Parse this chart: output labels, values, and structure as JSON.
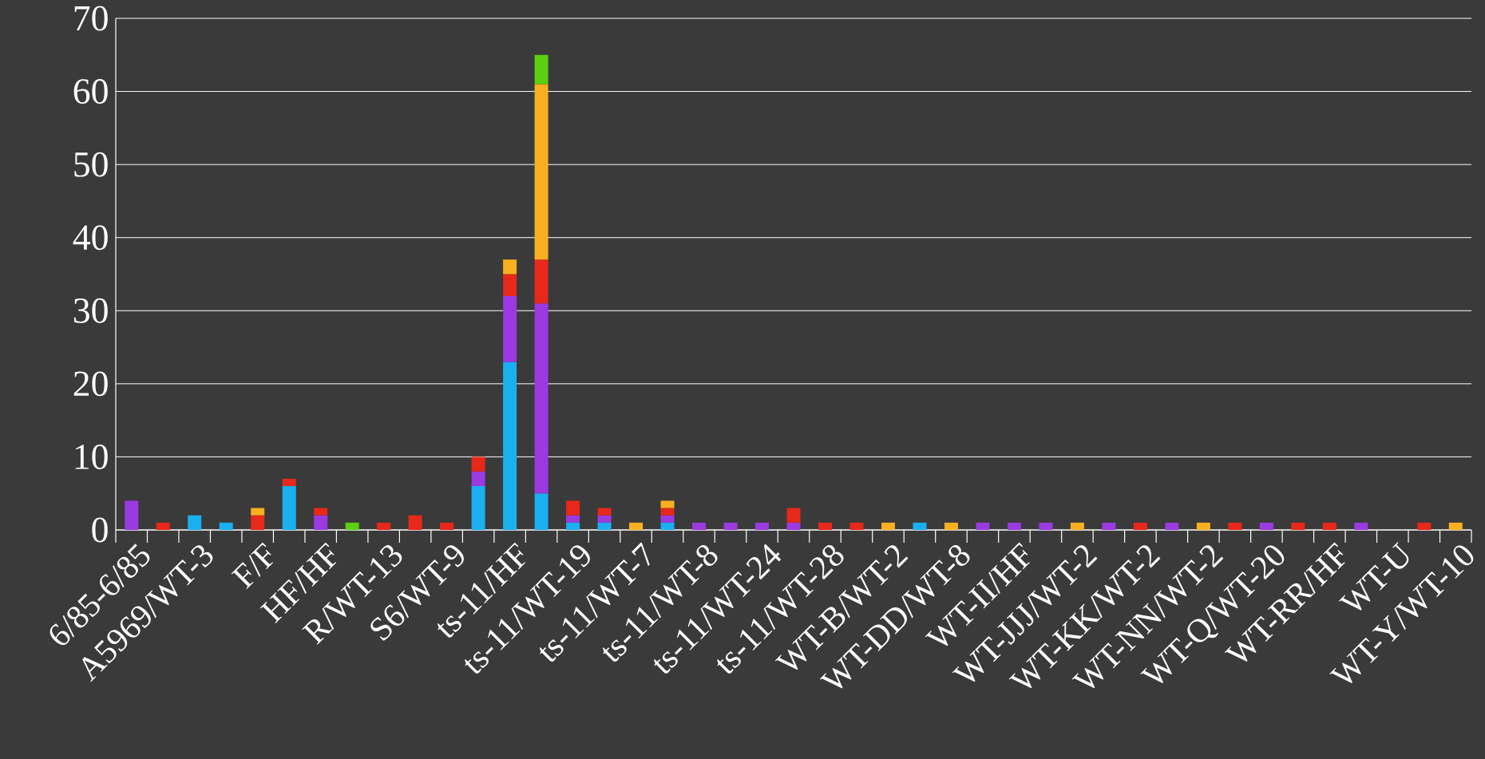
{
  "chart_data": {
    "type": "bar",
    "stacked": true,
    "categories": [
      "6/85-6/85",
      null,
      "A5969/WT-3",
      null,
      "F/F",
      null,
      "HF/HF",
      null,
      "R/WT-13",
      null,
      "S6/WT-9",
      null,
      "ts-11/HF",
      null,
      "ts-11/WT-19",
      null,
      "ts-11/WT-7",
      null,
      "ts-11/WT-8",
      null,
      "ts-11/WT-24",
      null,
      "ts-11/WT-28",
      null,
      "WT-B/WT-2",
      null,
      "WT-DD/WT-8",
      null,
      "WT-II/HF",
      null,
      "WT-JJJ/WT-2",
      null,
      "WT-KK/WT-2",
      null,
      "WT-NN/WT-2",
      null,
      "WT-Q/WT-20",
      null,
      "WT-RR/HF",
      null,
      "WT-U",
      null,
      "WT-Y/WT-10"
    ],
    "series": [
      {
        "color": "#1ab0f0",
        "values": [
          null,
          null,
          2,
          1,
          null,
          6,
          null,
          null,
          null,
          null,
          null,
          6,
          23,
          5,
          1,
          1,
          null,
          1,
          null,
          null,
          null,
          null,
          null,
          null,
          null,
          1,
          null,
          null,
          null,
          null,
          null,
          null,
          null,
          null,
          null,
          null,
          null,
          null,
          null,
          null,
          null,
          null,
          null
        ]
      },
      {
        "color": "#9a3ae0",
        "values": [
          4,
          null,
          null,
          null,
          null,
          null,
          2,
          null,
          null,
          null,
          null,
          2,
          9,
          26,
          1,
          1,
          null,
          1,
          1,
          1,
          1,
          1,
          null,
          null,
          null,
          null,
          null,
          1,
          1,
          1,
          null,
          1,
          null,
          1,
          null,
          null,
          1,
          null,
          null,
          1,
          null,
          null,
          null
        ]
      },
      {
        "color": "#e8281a",
        "values": [
          null,
          1,
          null,
          null,
          2,
          1,
          1,
          null,
          1,
          2,
          1,
          2,
          3,
          6,
          2,
          1,
          null,
          1,
          null,
          null,
          null,
          2,
          1,
          1,
          null,
          null,
          null,
          null,
          null,
          null,
          null,
          null,
          1,
          null,
          null,
          1,
          null,
          1,
          1,
          null,
          null,
          1,
          null
        ]
      },
      {
        "color": "#f8b020",
        "values": [
          null,
          null,
          null,
          null,
          1,
          null,
          null,
          null,
          null,
          null,
          null,
          null,
          2,
          24,
          null,
          null,
          1,
          1,
          null,
          null,
          null,
          null,
          null,
          null,
          1,
          null,
          1,
          null,
          null,
          null,
          1,
          null,
          null,
          null,
          1,
          null,
          null,
          null,
          null,
          null,
          null,
          null,
          1
        ]
      },
      {
        "color": "#5cd010",
        "values": [
          null,
          null,
          null,
          null,
          null,
          null,
          null,
          1,
          null,
          null,
          null,
          null,
          null,
          4,
          null,
          null,
          null,
          null,
          null,
          null,
          null,
          null,
          null,
          null,
          null,
          null,
          null,
          null,
          null,
          null,
          null,
          null,
          null,
          null,
          null,
          null,
          null,
          null,
          null,
          null,
          null,
          null,
          null
        ]
      }
    ],
    "ylim": [
      0,
      70
    ],
    "yticks": [
      0,
      10,
      20,
      30,
      40,
      50,
      60,
      70
    ],
    "grid": "y"
  }
}
